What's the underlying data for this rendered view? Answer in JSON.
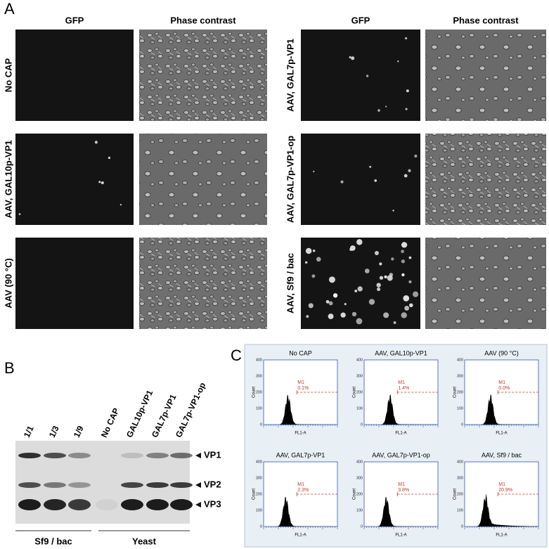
{
  "panel_a": {
    "label": "A",
    "columns": [
      {
        "headers": [
          "GFP",
          "Phase contrast"
        ],
        "rows": [
          "No CAP",
          "AAV, GAL10p-VP1",
          "AAV (90 °C)"
        ]
      },
      {
        "headers": [
          "GFP",
          "Phase contrast"
        ],
        "rows": [
          "AAV, GAL7p-VP1",
          "AAV, GAL7p-VP1-op",
          "AAV, Sf9 / bac"
        ]
      }
    ]
  },
  "panel_b": {
    "label": "B",
    "lanes": [
      "1/1",
      "1/3",
      "1/9",
      "No CAP",
      "GAL10p-VP1",
      "GAL7p-VP1",
      "GAL7p-VP1-op"
    ],
    "bands": [
      "VP1",
      "VP2",
      "VP3"
    ],
    "groups": [
      "Sf9 / bac",
      "Yeast"
    ]
  },
  "panel_c": {
    "label": "C",
    "y_axis_label": "Count",
    "x_axis_label": "FL1-A",
    "gate": "M1",
    "yticks": [
      0,
      100,
      200,
      300,
      400
    ],
    "plots": [
      {
        "title": "No CAP",
        "percent": "0.1%"
      },
      {
        "title": "AAV, GAL10p-VP1",
        "percent": "1.4%"
      },
      {
        "title": "AAV  (90 °C)",
        "percent": "0.0%"
      },
      {
        "title": "AAV, GAL7p-VP1",
        "percent": "2.3%"
      },
      {
        "title": "AAV, GAL7p-VP1-op",
        "percent": "3.8%"
      },
      {
        "title": "AAV, Sf9 / bac",
        "percent": "20.9%"
      }
    ]
  }
}
